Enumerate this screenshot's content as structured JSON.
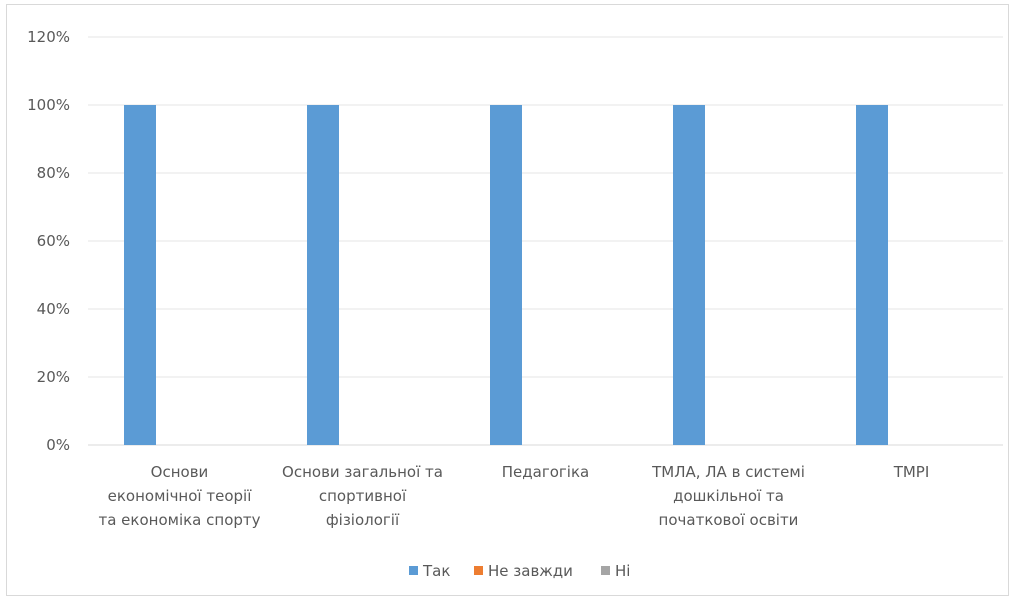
{
  "chart_data": {
    "type": "bar",
    "categories": [
      [
        "Основи",
        "економічної теорії",
        "та економіка спорту"
      ],
      [
        "Основи загальної та",
        "спортивної",
        "фізіології"
      ],
      [
        "Педагогіка"
      ],
      [
        "ТМЛА, ЛА в системі",
        "дошкільної та",
        "початкової освіти"
      ],
      [
        "ТМРІ"
      ]
    ],
    "series": [
      {
        "name": "Так",
        "color": "#5b9bd5",
        "values": [
          100,
          100,
          100,
          100,
          100
        ]
      },
      {
        "name": "Не завжди",
        "color": "#ed7d31",
        "values": [
          0,
          0,
          0,
          0,
          0
        ]
      },
      {
        "name": "Ні",
        "color": "#a5a5a5",
        "values": [
          0,
          0,
          0,
          0,
          0
        ]
      }
    ],
    "ylim": [
      0,
      120
    ],
    "yticks": [
      "0%",
      "20%",
      "40%",
      "60%",
      "80%",
      "100%",
      "120%"
    ],
    "grid": true,
    "legend_position": "bottom"
  }
}
